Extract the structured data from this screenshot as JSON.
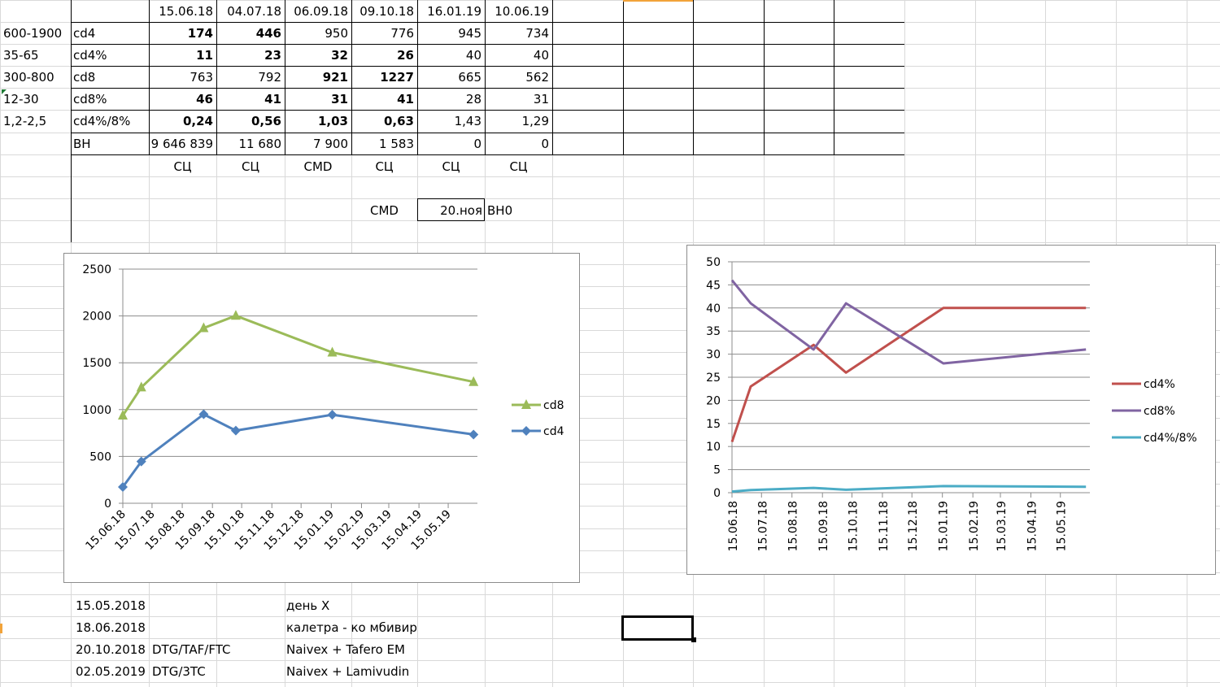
{
  "table": {
    "dates": [
      "15.06.18",
      "04.07.18",
      "06.09.18",
      "09.10.18",
      "16.01.19",
      "10.06.19"
    ],
    "rows": [
      {
        "range": "600-1900",
        "name": "cd4",
        "values": [
          "174",
          "446",
          "950",
          "776",
          "945",
          "734"
        ],
        "bold": [
          true,
          true,
          false,
          false,
          false,
          false
        ]
      },
      {
        "range": "35-65",
        "name": "cd4%",
        "values": [
          "11",
          "23",
          "32",
          "26",
          "40",
          "40"
        ],
        "bold": [
          true,
          true,
          true,
          true,
          false,
          false
        ]
      },
      {
        "range": "300-800",
        "name": "cd8",
        "values": [
          "763",
          "792",
          "921",
          "1227",
          "665",
          "562"
        ],
        "bold": [
          false,
          false,
          true,
          true,
          false,
          false
        ]
      },
      {
        "range": "12-30",
        "name": "cd8%",
        "values": [
          "46",
          "41",
          "31",
          "41",
          "28",
          "31"
        ],
        "bold": [
          true,
          true,
          true,
          true,
          false,
          false
        ]
      },
      {
        "range": "1,2-2,5",
        "name": "cd4%/8%",
        "values": [
          "0,24",
          "0,56",
          "1,03",
          "0,63",
          "1,43",
          "1,29"
        ],
        "bold": [
          true,
          true,
          true,
          true,
          false,
          false
        ]
      },
      {
        "range": "",
        "name": "ВН",
        "values": [
          "9 646 839",
          "11 680",
          "7 900",
          "1 583",
          "0",
          "0"
        ],
        "bold": [
          false,
          false,
          false,
          false,
          false,
          false
        ]
      }
    ],
    "footer": [
      "СЦ",
      "СЦ",
      "CMD",
      "СЦ",
      "СЦ",
      "СЦ"
    ]
  },
  "extra": {
    "cmd_label": "CMD",
    "cmd_value": "20.ноя",
    "vn0": "ВН0"
  },
  "notes": [
    {
      "date": "15.05.2018",
      "code": "",
      "desc": "день Х"
    },
    {
      "date": "18.06.2018",
      "code": "",
      "desc": "калетра - ко мбивир"
    },
    {
      "date": "20.10.2018",
      "code": "DTG/TAF/FTC",
      "desc": "Naivex + Tafero EM"
    },
    {
      "date": "02.05.2019",
      "code": "DTG/3TC",
      "desc": "Naivex + Lamivudin"
    }
  ],
  "chart_data": [
    {
      "type": "line",
      "x": [
        "2018-06-15",
        "2018-07-04",
        "2018-09-06",
        "2018-10-09",
        "2019-01-16",
        "2019-06-10"
      ],
      "x_tick_labels": [
        "15.06.18",
        "15.07.18",
        "15.08.18",
        "15.09.18",
        "15.10.18",
        "15.11.18",
        "15.12.18",
        "15.01.19",
        "15.02.19",
        "15.03.19",
        "15.04.19",
        "15.05.19"
      ],
      "y_tick_labels": [
        "0",
        "500",
        "1000",
        "1500",
        "2000",
        "2500"
      ],
      "ylim": [
        0,
        2500
      ],
      "grid": true,
      "legend": "right",
      "series": [
        {
          "name": "cd8",
          "values": [
            937,
            1238,
            1871,
            2003,
            1610,
            1296
          ],
          "color": "#9bbb59",
          "marker": "triangle"
        },
        {
          "name": "cd4",
          "values": [
            174,
            446,
            950,
            776,
            945,
            734
          ],
          "color": "#4f81bd",
          "marker": "diamond"
        }
      ]
    },
    {
      "type": "line",
      "x": [
        "2018-06-15",
        "2018-07-04",
        "2018-09-06",
        "2018-10-09",
        "2019-01-16",
        "2019-06-10"
      ],
      "x_tick_labels": [
        "15.06.18",
        "15.07.18",
        "15.08.18",
        "15.09.18",
        "15.10.18",
        "15.11.18",
        "15.12.18",
        "15.01.19",
        "15.02.19",
        "15.03.19",
        "15.04.19",
        "15.05.19"
      ],
      "y_tick_labels": [
        "0",
        "5",
        "10",
        "15",
        "20",
        "25",
        "30",
        "35",
        "40",
        "45",
        "50"
      ],
      "ylim": [
        0,
        50
      ],
      "grid": true,
      "legend": "right",
      "series": [
        {
          "name": "cd4%",
          "values": [
            11,
            23,
            32,
            26,
            40,
            40
          ],
          "color": "#c0504d"
        },
        {
          "name": "cd8%",
          "values": [
            46,
            41,
            31,
            41,
            28,
            31
          ],
          "color": "#8064a2"
        },
        {
          "name": "cd4%/8%",
          "values": [
            0.24,
            0.56,
            1.03,
            0.63,
            1.43,
            1.29
          ],
          "color": "#4bacc6"
        }
      ]
    }
  ]
}
